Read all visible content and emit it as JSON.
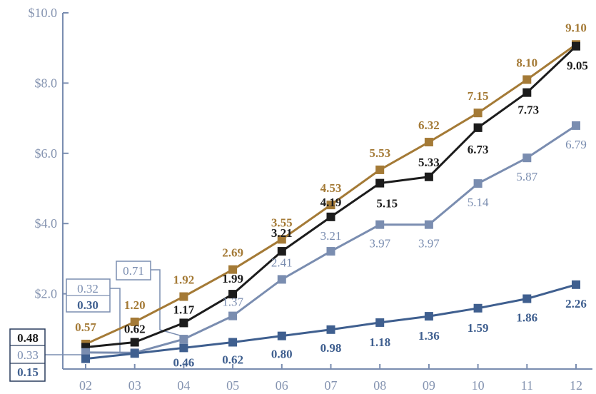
{
  "chart_data": {
    "type": "line",
    "categories": [
      "02",
      "03",
      "04",
      "05",
      "06",
      "07",
      "08",
      "09",
      "10",
      "11",
      "12"
    ],
    "y_ticks": [
      "$10.0",
      "$8.0",
      "$6.0",
      "$4.0",
      "$2.0"
    ],
    "ylim": [
      0,
      10
    ],
    "grid": false,
    "legend": "none",
    "series": [
      {
        "color": "#a47a36",
        "label_weight": "bold",
        "values": [
          0.57,
          1.2,
          1.92,
          2.69,
          3.55,
          4.53,
          5.53,
          6.32,
          7.15,
          8.1,
          9.1
        ],
        "labels": [
          "0.57",
          "1.20",
          "1.92",
          "2.69",
          "3.55",
          "4.53",
          "5.53",
          "6.32",
          "7.15",
          "8.10",
          "9.10"
        ]
      },
      {
        "color": "#1c1c1c",
        "label_weight": "bold",
        "values": [
          0.48,
          0.62,
          1.17,
          1.99,
          3.21,
          4.19,
          5.15,
          5.33,
          6.73,
          7.73,
          9.05
        ],
        "labels": [
          "0.48",
          "0.62",
          "1.17",
          "1.99",
          "3.21",
          "4.19",
          "5.15",
          "5.33",
          "6.73",
          "7.73",
          "9.05"
        ]
      },
      {
        "color": "#7a8db0",
        "label_weight": "normal",
        "values": [
          0.33,
          0.32,
          0.71,
          1.37,
          2.41,
          3.21,
          3.97,
          3.97,
          5.14,
          5.87,
          6.79
        ],
        "labels": [
          "0.33",
          "0.32",
          "0.71",
          "1.37",
          "2.41",
          "3.21",
          "3.97",
          "3.97",
          "5.14",
          "5.87",
          "6.79"
        ]
      },
      {
        "color": "#3f5f8f",
        "label_weight": "bold",
        "values": [
          0.15,
          0.3,
          0.46,
          0.62,
          0.8,
          0.98,
          1.18,
          1.36,
          1.59,
          1.86,
          2.26
        ],
        "labels": [
          "0.15",
          "0.30",
          "0.46",
          "0.62",
          "0.80",
          "0.98",
          "1.18",
          "1.36",
          "1.59",
          "1.86",
          "2.26"
        ]
      }
    ]
  }
}
